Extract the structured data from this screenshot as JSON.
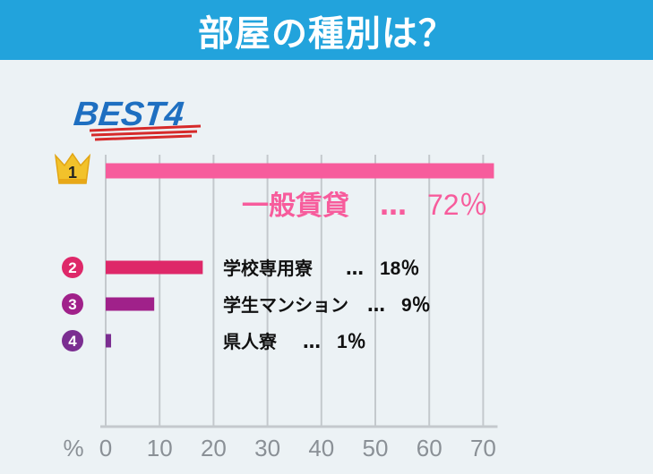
{
  "header": {
    "title": "部屋の種別は？"
  },
  "badge": {
    "text": "BEST4"
  },
  "colors": {
    "header_bg": "#22a3dc",
    "page_bg": "#ecf2f5",
    "badge_text": "#1e6fc1",
    "badge_underline": "#d62a2a",
    "gold": "#f2c22b",
    "grid": "#c4c9cd",
    "axis_text": "#8a9096"
  },
  "chart_data": {
    "type": "bar",
    "orientation": "horizontal",
    "title": "",
    "xlabel": "%",
    "xlim": [
      0,
      72
    ],
    "xticks": [
      0,
      10,
      20,
      30,
      40,
      50,
      60,
      70
    ],
    "grid": true,
    "categories": [
      "一般賃貸",
      "学校専用寮",
      "学生マンション",
      "県人寮"
    ],
    "values": [
      72,
      18,
      9,
      1
    ],
    "value_labels": [
      "72％",
      "18％",
      "9％",
      "1％"
    ],
    "separator": "…",
    "ranks": [
      "1",
      "2",
      "3",
      "4"
    ],
    "colors": [
      "#f75c9c",
      "#de2869",
      "#a0218a",
      "#7b2e91"
    ]
  }
}
